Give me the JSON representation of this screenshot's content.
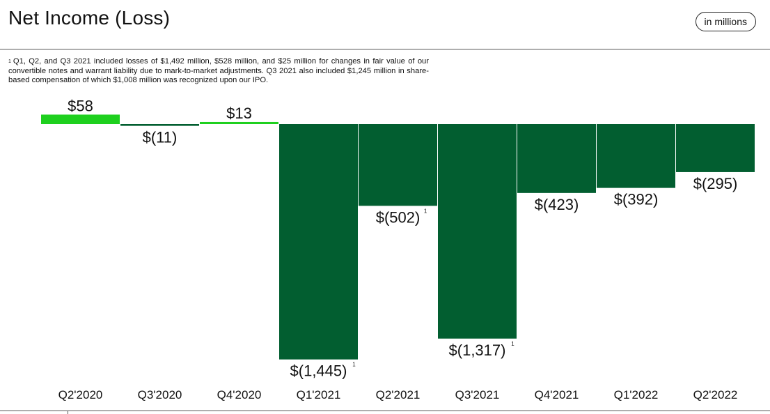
{
  "header": {
    "title": "Net Income (Loss)",
    "units_label": "in millions"
  },
  "footnote": {
    "marker": "1",
    "text": "Q1, Q2, and Q3 2021 included losses of $1,492 million, $528 million, and $25 million for changes in fair value of our convertible notes and warrant liability due to mark-to-market adjustments. Q3 2021 also included $1,245 million in share-based compensation of which $1,008 million was recognized upon our IPO."
  },
  "colors": {
    "positive": "#1ed01e",
    "negative": "#025e30",
    "text": "#111111",
    "rule": "#555555"
  },
  "chart_data": {
    "type": "bar",
    "title": "Net Income (Loss)",
    "units": "in millions",
    "xlabel": "",
    "ylabel": "",
    "grid": false,
    "categories": [
      "Q2'2020",
      "Q3'2020",
      "Q4'2020",
      "Q1'2021",
      "Q2'2021",
      "Q3'2021",
      "Q4'2021",
      "Q1'2022",
      "Q2'2022"
    ],
    "values": [
      58,
      -11,
      13,
      -1445,
      -502,
      -1317,
      -423,
      -392,
      -295
    ],
    "labels": [
      "$58",
      "$(11)",
      "$13",
      "$(1,445)",
      "$(502)",
      "$(1,317)",
      "$(423)",
      "$(392)",
      "$(295)"
    ],
    "footnote_refs": [
      false,
      false,
      false,
      true,
      true,
      true,
      false,
      false,
      false
    ],
    "footnote_marker": "1",
    "ylim": [
      -1600,
      300
    ]
  }
}
